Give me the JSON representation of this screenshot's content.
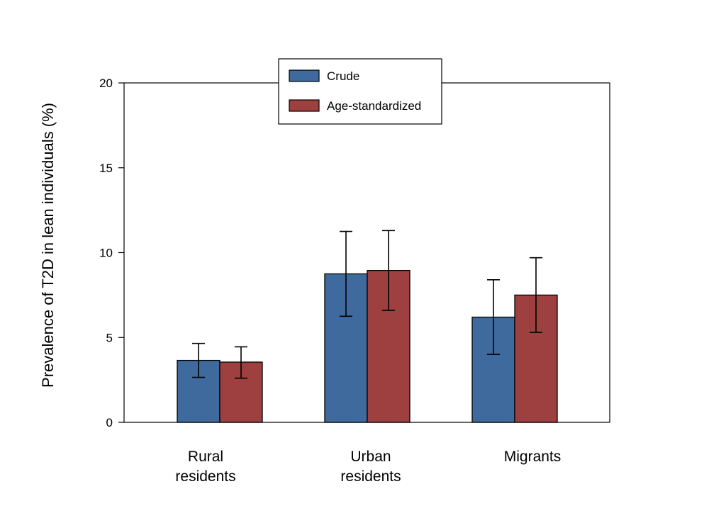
{
  "chart_data": {
    "type": "bar",
    "title": "",
    "xlabel": "",
    "ylabel": "Prevalence of T2D in lean individuals (%)",
    "ylim": [
      0,
      20
    ],
    "yticks": [
      0,
      5,
      10,
      15,
      20
    ],
    "grid": false,
    "legend_position": "top-center",
    "categories": [
      [
        "Rural",
        "residents"
      ],
      [
        "Urban",
        "residents"
      ],
      [
        "Migrants"
      ]
    ],
    "series": [
      {
        "name": "Crude",
        "color": "#3f6a9d",
        "values": [
          3.65,
          8.75,
          6.2
        ],
        "error_low": [
          2.65,
          6.25,
          4.0
        ],
        "error_high": [
          4.65,
          11.25,
          8.4
        ]
      },
      {
        "name": "Age-standardized",
        "color": "#9e4040",
        "values": [
          3.55,
          8.95,
          7.5
        ],
        "error_low": [
          2.6,
          6.6,
          5.3
        ],
        "error_high": [
          4.45,
          11.3,
          9.7
        ]
      }
    ]
  }
}
